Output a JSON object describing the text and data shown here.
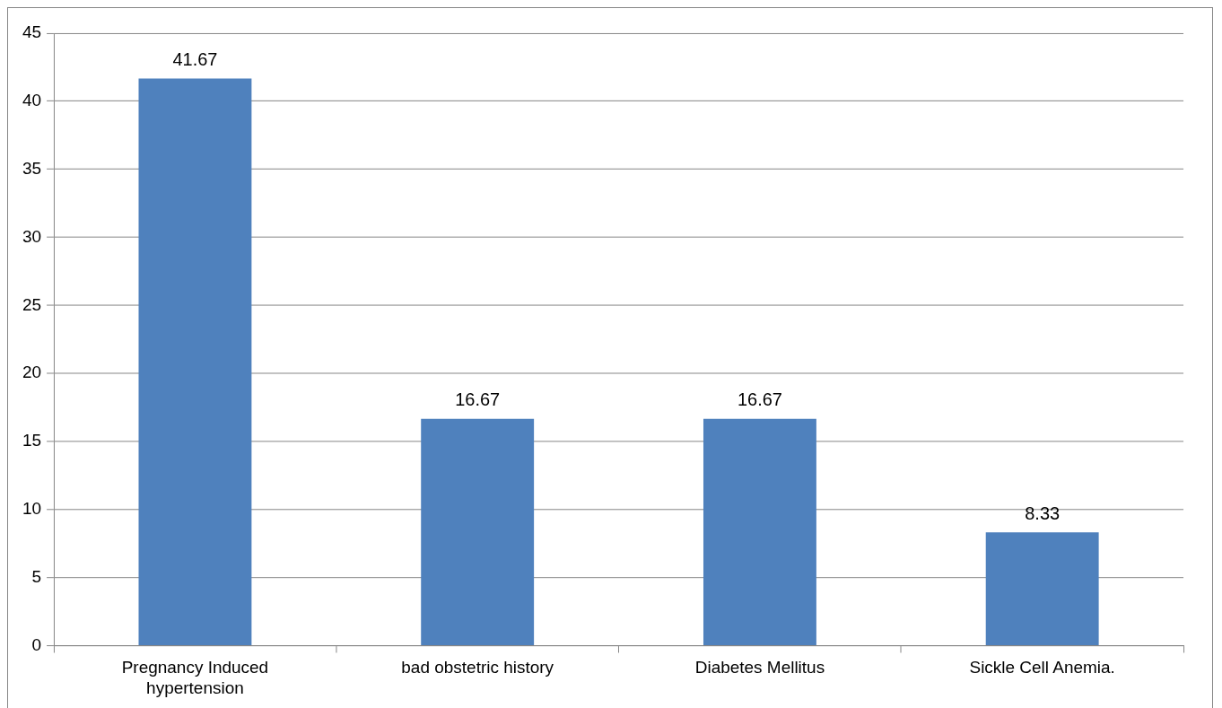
{
  "chart_data": {
    "type": "bar",
    "categories": [
      "Pregnancy Induced hypertension",
      "bad obstetric history",
      "Diabetes Mellitus",
      "Sickle Cell Anemia."
    ],
    "values": [
      41.67,
      16.67,
      16.67,
      8.33
    ],
    "color": "#4f81bd",
    "ylim": [
      0,
      45
    ],
    "yticks": [
      0,
      5,
      10,
      15,
      20,
      25,
      30,
      35,
      40,
      45
    ],
    "grid": "y",
    "legend": false,
    "data_labels": true
  }
}
